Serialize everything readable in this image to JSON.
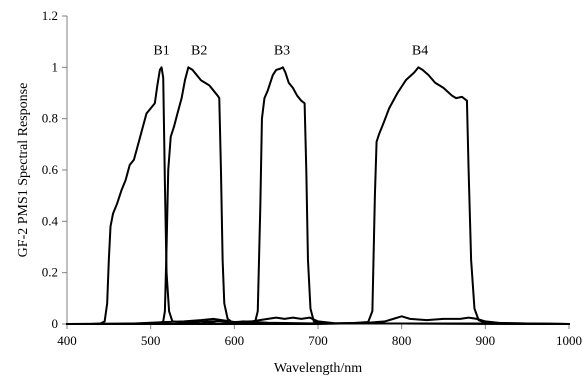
{
  "chart_data": {
    "type": "line",
    "title": "",
    "xlabel": "Wavelength/nm",
    "ylabel": "GF-2 PMS1 Spectral Response",
    "xlim": [
      400,
      1000
    ],
    "ylim": [
      0,
      1.2
    ],
    "xticks": [
      400,
      500,
      600,
      700,
      800,
      900,
      1000
    ],
    "yticks": [
      0,
      0.2,
      0.4,
      0.6,
      0.8,
      1,
      1.2
    ],
    "xtick_labels": [
      "400",
      "500",
      "600",
      "700",
      "800",
      "900",
      "1000"
    ],
    "ytick_labels": [
      "0",
      "0.2",
      "0.4",
      "0.6",
      "0.8",
      "1",
      "1.2"
    ],
    "grid": false,
    "legend": "none",
    "series": [
      {
        "label": "B1",
        "label_position": [
          513,
          1.05
        ],
        "points": [
          [
            400,
            0
          ],
          [
            430,
            0
          ],
          [
            440,
            0.002
          ],
          [
            445,
            0.01
          ],
          [
            448,
            0.08
          ],
          [
            450,
            0.25
          ],
          [
            452,
            0.38
          ],
          [
            455,
            0.43
          ],
          [
            460,
            0.47
          ],
          [
            465,
            0.52
          ],
          [
            470,
            0.56
          ],
          [
            475,
            0.62
          ],
          [
            480,
            0.64
          ],
          [
            485,
            0.7
          ],
          [
            490,
            0.76
          ],
          [
            495,
            0.82
          ],
          [
            500,
            0.84
          ],
          [
            505,
            0.86
          ],
          [
            508,
            0.93
          ],
          [
            511,
            0.99
          ],
          [
            513,
            1.0
          ],
          [
            515,
            0.96
          ],
          [
            517,
            0.55
          ],
          [
            519,
            0.2
          ],
          [
            522,
            0.05
          ],
          [
            526,
            0.01
          ],
          [
            540,
            0.005
          ],
          [
            570,
            0.01
          ],
          [
            590,
            0.012
          ],
          [
            600,
            0.005
          ],
          [
            620,
            0.002
          ],
          [
            700,
            0.002
          ],
          [
            800,
            0.002
          ],
          [
            900,
            0.002
          ],
          [
            1000,
            0
          ]
        ]
      },
      {
        "label": "B2",
        "label_position": [
          558,
          1.05
        ],
        "points": [
          [
            400,
            0
          ],
          [
            500,
            0
          ],
          [
            510,
            0.002
          ],
          [
            515,
            0.01
          ],
          [
            517,
            0.05
          ],
          [
            519,
            0.3
          ],
          [
            521,
            0.6
          ],
          [
            524,
            0.73
          ],
          [
            528,
            0.77
          ],
          [
            532,
            0.82
          ],
          [
            537,
            0.88
          ],
          [
            541,
            0.95
          ],
          [
            545,
            1.0
          ],
          [
            550,
            0.99
          ],
          [
            555,
            0.97
          ],
          [
            560,
            0.95
          ],
          [
            565,
            0.94
          ],
          [
            570,
            0.93
          ],
          [
            575,
            0.91
          ],
          [
            580,
            0.89
          ],
          [
            582,
            0.88
          ],
          [
            584,
            0.6
          ],
          [
            586,
            0.25
          ],
          [
            588,
            0.08
          ],
          [
            592,
            0.02
          ],
          [
            598,
            0.005
          ],
          [
            610,
            0.01
          ],
          [
            640,
            0.005
          ],
          [
            700,
            0.002
          ],
          [
            800,
            0.002
          ],
          [
            1000,
            0
          ]
        ]
      },
      {
        "label": "B3",
        "label_position": [
          657,
          1.05
        ],
        "points": [
          [
            400,
            0
          ],
          [
            560,
            0
          ],
          [
            580,
            0.01
          ],
          [
            600,
            0.005
          ],
          [
            620,
            0.003
          ],
          [
            625,
            0.01
          ],
          [
            628,
            0.05
          ],
          [
            631,
            0.45
          ],
          [
            633,
            0.8
          ],
          [
            636,
            0.88
          ],
          [
            640,
            0.91
          ],
          [
            643,
            0.94
          ],
          [
            646,
            0.97
          ],
          [
            650,
            0.99
          ],
          [
            655,
            0.995
          ],
          [
            658,
            1.0
          ],
          [
            661,
            0.98
          ],
          [
            665,
            0.94
          ],
          [
            670,
            0.92
          ],
          [
            675,
            0.89
          ],
          [
            680,
            0.87
          ],
          [
            684,
            0.86
          ],
          [
            686,
            0.6
          ],
          [
            688,
            0.25
          ],
          [
            691,
            0.06
          ],
          [
            695,
            0.01
          ],
          [
            700,
            0.005
          ],
          [
            720,
            0.002
          ],
          [
            800,
            0.002
          ],
          [
            1000,
            0
          ]
        ]
      },
      {
        "label": "B4",
        "label_position": [
          822,
          1.05
        ],
        "points": [
          [
            400,
            0
          ],
          [
            700,
            0
          ],
          [
            740,
            0.003
          ],
          [
            760,
            0.008
          ],
          [
            765,
            0.05
          ],
          [
            768,
            0.5
          ],
          [
            770,
            0.71
          ],
          [
            773,
            0.74
          ],
          [
            778,
            0.78
          ],
          [
            785,
            0.84
          ],
          [
            795,
            0.9
          ],
          [
            805,
            0.95
          ],
          [
            815,
            0.98
          ],
          [
            820,
            1.0
          ],
          [
            825,
            0.99
          ],
          [
            832,
            0.97
          ],
          [
            840,
            0.94
          ],
          [
            850,
            0.92
          ],
          [
            860,
            0.89
          ],
          [
            865,
            0.88
          ],
          [
            872,
            0.885
          ],
          [
            878,
            0.87
          ],
          [
            880,
            0.6
          ],
          [
            883,
            0.25
          ],
          [
            887,
            0.06
          ],
          [
            892,
            0.015
          ],
          [
            900,
            0.005
          ],
          [
            950,
            0.002
          ],
          [
            1000,
            0
          ]
        ]
      },
      {
        "points": [
          [
            400,
            0
          ],
          [
            480,
            0.002
          ],
          [
            500,
            0.005
          ],
          [
            520,
            0.008
          ],
          [
            540,
            0.01
          ],
          [
            560,
            0.015
          ],
          [
            575,
            0.02
          ],
          [
            585,
            0.015
          ],
          [
            600,
            0.008
          ],
          [
            620,
            0.01
          ],
          [
            640,
            0.02
          ],
          [
            650,
            0.025
          ],
          [
            660,
            0.02
          ],
          [
            670,
            0.025
          ],
          [
            680,
            0.02
          ],
          [
            690,
            0.025
          ],
          [
            700,
            0.01
          ],
          [
            720,
            0.003
          ],
          [
            760,
            0.005
          ],
          [
            780,
            0.01
          ],
          [
            790,
            0.02
          ],
          [
            800,
            0.03
          ],
          [
            810,
            0.02
          ],
          [
            830,
            0.015
          ],
          [
            850,
            0.02
          ],
          [
            870,
            0.02
          ],
          [
            880,
            0.025
          ],
          [
            890,
            0.02
          ],
          [
            900,
            0.01
          ],
          [
            920,
            0.003
          ],
          [
            1000,
            0
          ]
        ]
      }
    ]
  }
}
